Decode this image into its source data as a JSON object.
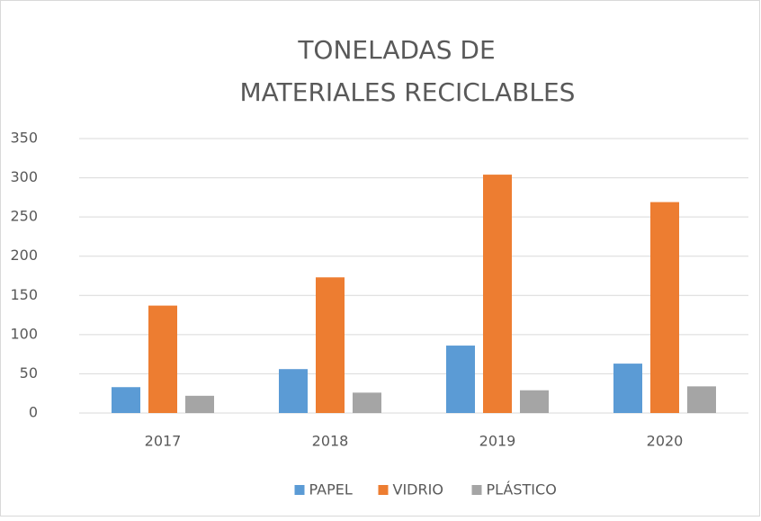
{
  "chart_data": {
    "type": "bar",
    "title": [
      "TONELADAS DE",
      "MATERIALES RECICLABLES"
    ],
    "categories": [
      "2017",
      "2018",
      "2019",
      "2020"
    ],
    "series": [
      {
        "name": "PAPEL",
        "color": "#5b9bd5",
        "values": [
          33,
          56,
          86,
          63
        ]
      },
      {
        "name": "VIDRIO",
        "color": "#ed7d31",
        "values": [
          137,
          173,
          304,
          269
        ]
      },
      {
        "name": "PLÁSTICO",
        "color": "#a5a5a5",
        "values": [
          22,
          26,
          29,
          34
        ]
      }
    ],
    "ylim": [
      0,
      350
    ],
    "yticks": [
      0,
      50,
      100,
      150,
      200,
      250,
      300,
      350
    ],
    "grid": true,
    "legend": "bottom"
  }
}
